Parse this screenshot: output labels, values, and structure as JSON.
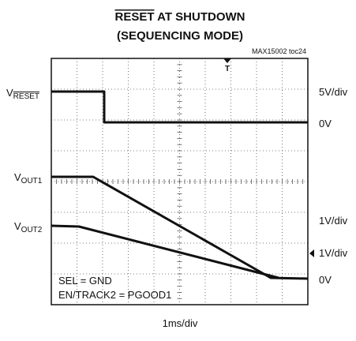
{
  "header": {
    "title_overline": "RESET",
    "title_rest": " AT SHUTDOWN",
    "subtitle": "(SEQUENCING MODE)",
    "part_id": "MAX15002 toc24"
  },
  "trigger": "T",
  "left_labels": [
    {
      "main": "V",
      "sub": "RESET"
    },
    {
      "main": "V",
      "sub": "OUT1"
    },
    {
      "main": "V",
      "sub": "OUT2"
    }
  ],
  "right_labels": [
    "5V/div",
    "0V",
    "1V/div",
    "1V/div",
    "0V"
  ],
  "annotations": [
    "SEL = GND",
    "EN/TRACK2 = PGOOD1"
  ],
  "x_scale": "1ms/div"
}
